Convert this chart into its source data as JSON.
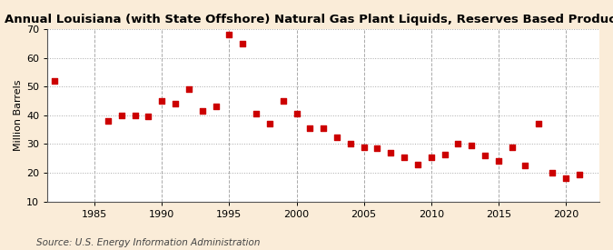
{
  "title": "Annual Louisiana (with State Offshore) Natural Gas Plant Liquids, Reserves Based Production",
  "ylabel": "Million Barrels",
  "source": "Source: U.S. Energy Information Administration",
  "figure_bg_color": "#faecd8",
  "plot_bg_color": "#ffffff",
  "marker_color": "#cc0000",
  "years": [
    1982,
    1986,
    1987,
    1988,
    1989,
    1990,
    1991,
    1992,
    1993,
    1994,
    1995,
    1996,
    1997,
    1998,
    1999,
    2000,
    2001,
    2002,
    2003,
    2004,
    2005,
    2006,
    2007,
    2008,
    2009,
    2010,
    2011,
    2012,
    2013,
    2014,
    2015,
    2016,
    2017,
    2018,
    2019,
    2020,
    2021
  ],
  "values": [
    52.0,
    38.0,
    40.0,
    40.0,
    39.5,
    45.0,
    44.0,
    49.0,
    41.5,
    43.0,
    68.0,
    65.0,
    40.5,
    37.0,
    45.0,
    40.5,
    35.5,
    35.5,
    32.5,
    30.0,
    29.0,
    28.5,
    27.0,
    25.5,
    23.0,
    25.5,
    26.5,
    30.0,
    29.5,
    26.0,
    24.0,
    29.0,
    22.5,
    37.0,
    20.0,
    18.0,
    19.5
  ],
  "xlim": [
    1981.5,
    2022.5
  ],
  "ylim": [
    10,
    70
  ],
  "yticks": [
    10,
    20,
    30,
    40,
    50,
    60,
    70
  ],
  "xticks": [
    1985,
    1990,
    1995,
    2000,
    2005,
    2010,
    2015,
    2020
  ],
  "grid_color": "#aaaaaa",
  "title_fontsize": 9.5,
  "label_fontsize": 8,
  "tick_fontsize": 8,
  "source_fontsize": 7.5
}
